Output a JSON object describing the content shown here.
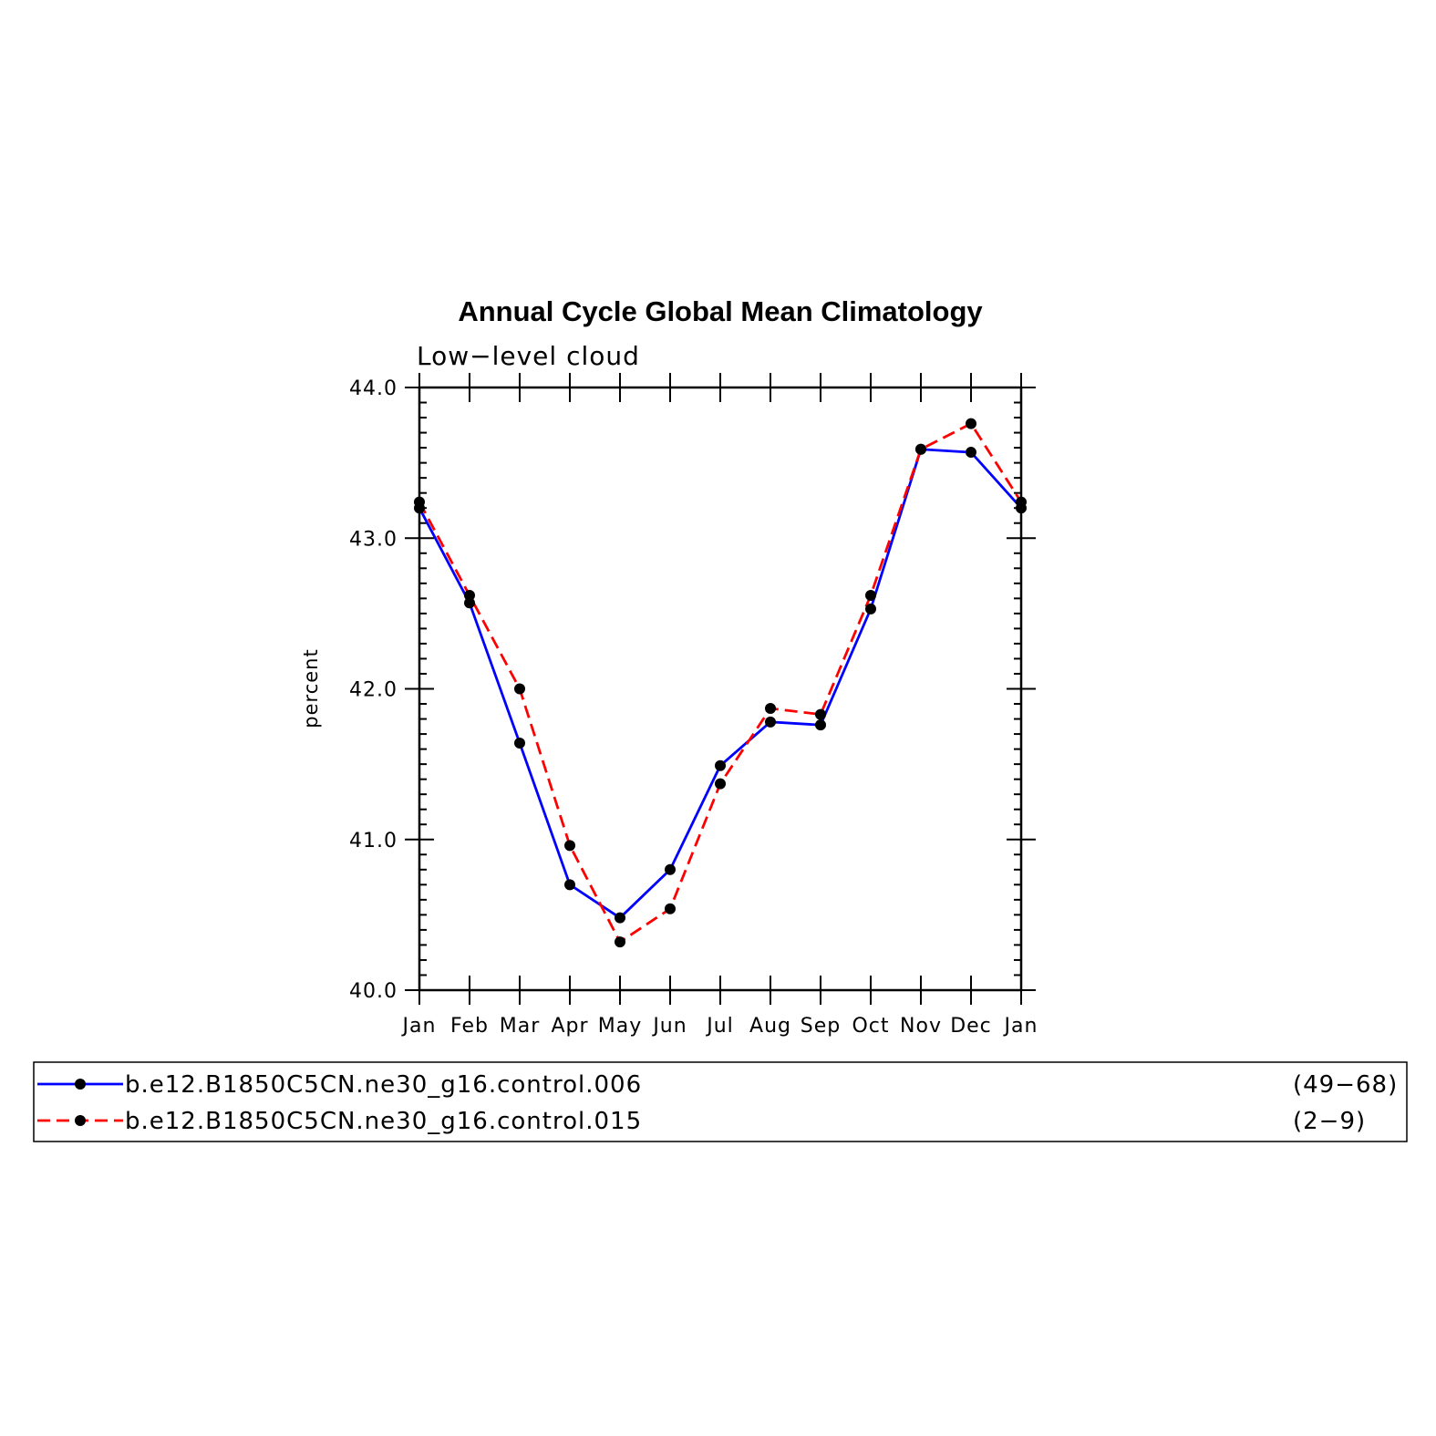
{
  "chart_data": {
    "type": "line",
    "title": "Annual Cycle Global Mean Climatology",
    "subtitle": "Low−level cloud",
    "ylabel": "percent",
    "xlabel": "",
    "categories": [
      "Jan",
      "Feb",
      "Mar",
      "Apr",
      "May",
      "Jun",
      "Jul",
      "Aug",
      "Sep",
      "Oct",
      "Nov",
      "Dec",
      "Jan"
    ],
    "ylim": [
      40.0,
      44.0
    ],
    "yticks": [
      "40.0",
      "41.0",
      "42.0",
      "43.0",
      "44.0"
    ],
    "grid": false,
    "legend_position": "bottom",
    "series": [
      {
        "name": "b.e12.B1850C5CN.ne30_g16.control.006",
        "years": "(49−68)",
        "color": "#0000ff",
        "style": "solid",
        "values": [
          43.2,
          42.57,
          41.64,
          40.7,
          40.48,
          40.8,
          41.49,
          41.78,
          41.76,
          42.53,
          43.59,
          43.57,
          43.2
        ]
      },
      {
        "name": "b.e12.B1850C5CN.ne30_g16.control.015",
        "years": "(2−9)",
        "color": "#ff0000",
        "style": "dashed",
        "values": [
          43.24,
          42.62,
          42.0,
          40.96,
          40.32,
          40.54,
          41.37,
          41.87,
          41.83,
          42.62,
          43.59,
          43.76,
          43.24
        ]
      }
    ]
  }
}
